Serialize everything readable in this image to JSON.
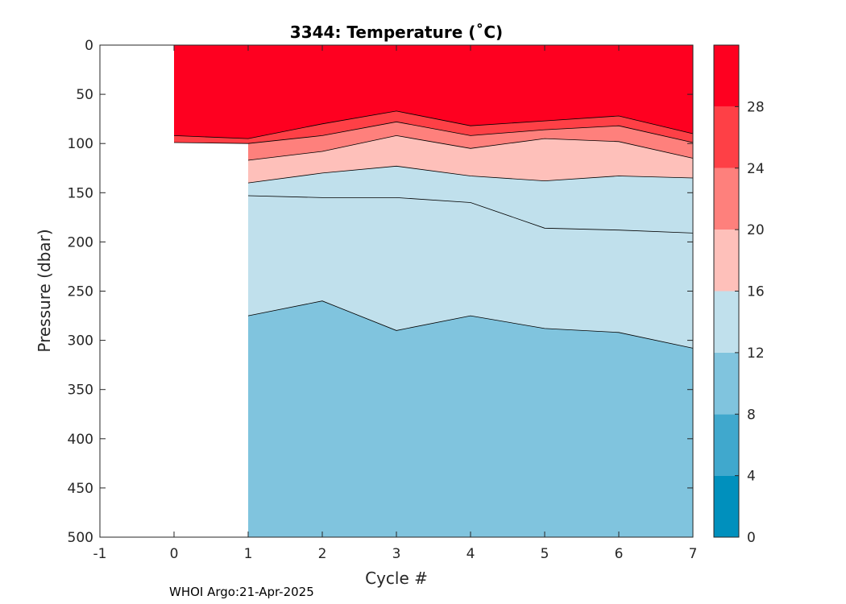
{
  "chart_data": {
    "type": "contour",
    "title": "3344:  Temperature (˚C)",
    "xlabel": "Cycle #",
    "ylabel": "Pressure (dbar)",
    "xlim": [
      -1,
      7
    ],
    "ylim": [
      500,
      0
    ],
    "xticks": [
      "-1",
      "0",
      "1",
      "2",
      "3",
      "4",
      "5",
      "6",
      "7"
    ],
    "yticks": [
      "0",
      "50",
      "100",
      "150",
      "200",
      "250",
      "300",
      "350",
      "400",
      "450",
      "500"
    ],
    "colorbar": {
      "ticks": [
        "0",
        "4",
        "8",
        "12",
        "16",
        "20",
        "24",
        "28"
      ],
      "levels": [
        0,
        4,
        8,
        12,
        16,
        20,
        24,
        28,
        32
      ],
      "colors": [
        "#0090bd",
        "#40a8cd",
        "#80c4de",
        "#c0e0ec",
        "#fec0ba",
        "#fe807c",
        "#fe4046",
        "#fe0020"
      ]
    },
    "isotherm_depths": {
      "cycles": [
        0,
        1,
        2,
        3,
        4,
        5,
        6,
        7
      ],
      "t28": [
        92,
        95,
        80,
        67,
        82,
        77,
        72,
        90
      ],
      "t24": [
        99,
        100,
        92,
        78,
        92,
        86,
        82,
        99
      ],
      "t20": [
        null,
        117,
        108,
        92,
        105,
        95,
        98,
        115
      ],
      "t16": [
        null,
        140,
        130,
        123,
        133,
        138,
        133,
        135
      ],
      "t12": [
        null,
        153,
        155,
        155,
        160,
        186,
        188,
        191
      ],
      "t8": [
        null,
        275,
        260,
        290,
        275,
        288,
        292,
        308
      ]
    },
    "footer": "WHOI Argo:21-Apr-2025"
  }
}
